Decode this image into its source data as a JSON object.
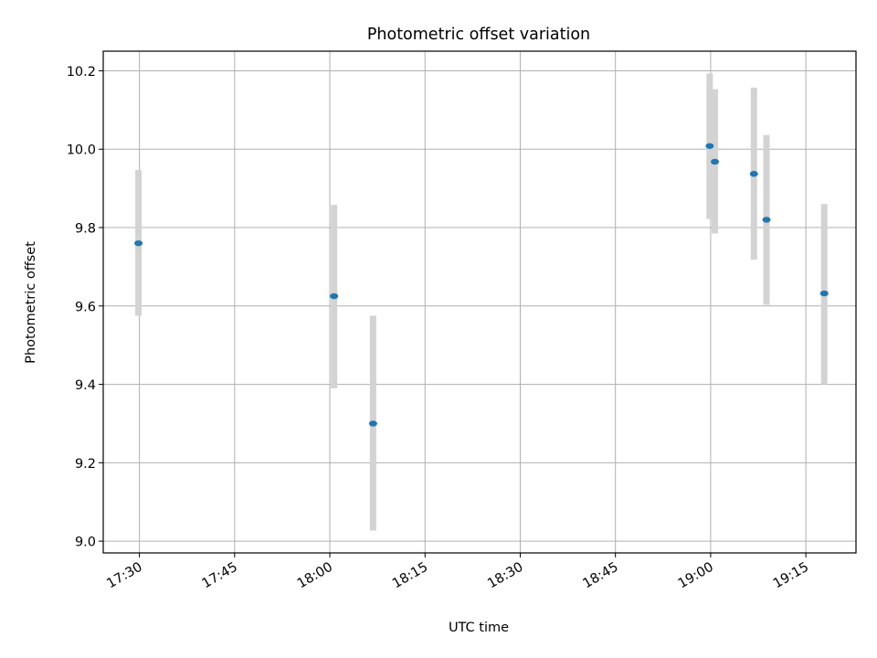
{
  "chart_data": {
    "type": "scatter",
    "title": "Photometric offset variation",
    "xlabel": "UTC time",
    "ylabel": "Photometric offset",
    "x_unit": "time_of_day",
    "xlim": [
      "17:24:18",
      "19:22:54"
    ],
    "ylim": [
      8.97,
      10.25
    ],
    "x_ticks": [
      "17:30",
      "17:45",
      "18:00",
      "18:15",
      "18:30",
      "18:45",
      "19:00",
      "19:15"
    ],
    "y_ticks": [
      9.0,
      9.2,
      9.4,
      9.6,
      9.8,
      10.0,
      10.2
    ],
    "y_tick_labels": [
      "9.0",
      "9.2",
      "9.4",
      "9.6",
      "9.8",
      "10.0",
      "10.2"
    ],
    "grid": true,
    "series": [
      {
        "marker_color": "#1f77b4",
        "errorbar_color": "#d3d3d3",
        "points": [
          {
            "x": "17:29:51",
            "y": 9.76,
            "low": 9.575,
            "high": 9.947
          },
          {
            "x": "18:00:40",
            "y": 9.625,
            "low": 9.39,
            "high": 9.858
          },
          {
            "x": "18:06:49",
            "y": 9.3,
            "low": 9.027,
            "high": 9.575
          },
          {
            "x": "18:59:51",
            "y": 10.008,
            "low": 9.822,
            "high": 10.193
          },
          {
            "x": "19:00:40",
            "y": 9.968,
            "low": 9.785,
            "high": 10.153
          },
          {
            "x": "19:06:49",
            "y": 9.937,
            "low": 9.718,
            "high": 10.157
          },
          {
            "x": "19:08:48",
            "y": 9.82,
            "low": 9.603,
            "high": 10.036
          },
          {
            "x": "19:17:54",
            "y": 9.632,
            "low": 9.4,
            "high": 9.86
          }
        ]
      }
    ]
  }
}
